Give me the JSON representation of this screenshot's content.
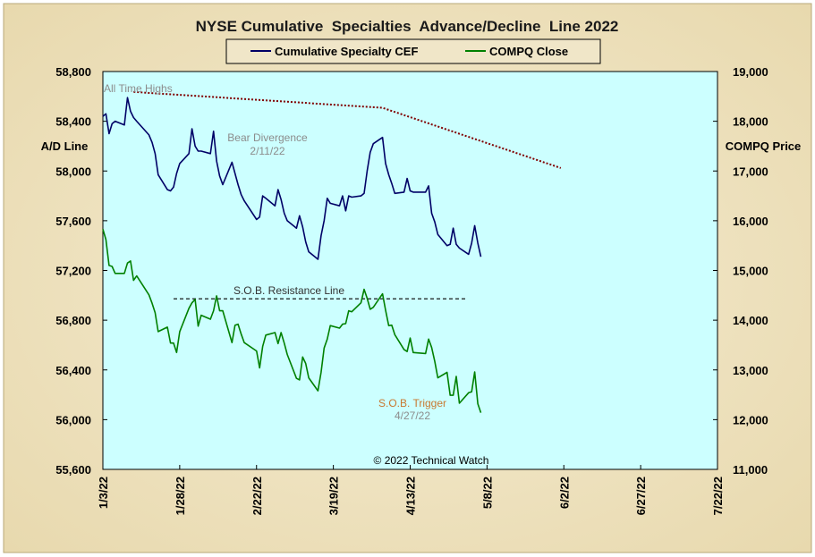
{
  "chart_data": {
    "type": "line",
    "title": "NYSE Cumulative  Specialties  Advance/Decline  Line 2022",
    "ylabel_left": "A/D Line",
    "ylabel_right": "COMPQ Price",
    "x_tick_labels": [
      "1/3/22",
      "1/28/22",
      "2/22/22",
      "3/19/22",
      "4/13/22",
      "5/8/22",
      "6/2/22",
      "6/27/22",
      "7/22/22"
    ],
    "x_ticks": [
      "2022-01-03",
      "2022-01-28",
      "2022-02-22",
      "2022-03-19",
      "2022-04-13",
      "2022-05-08",
      "2022-06-02",
      "2022-06-27",
      "2022-07-22"
    ],
    "xlim": [
      "2022-01-03",
      "2022-07-22"
    ],
    "ylim_left": [
      55600,
      58800
    ],
    "y_ticks_left": [
      "58,800",
      "58,400",
      "58,000",
      "57,600",
      "57,200",
      "56,800",
      "56,400",
      "56,000",
      "55,600"
    ],
    "ylim_right": [
      11000,
      19000
    ],
    "y_ticks_right": [
      "19,000",
      "18,000",
      "17,000",
      "16,000",
      "15,000",
      "14,000",
      "13,000",
      "12,000",
      "11,000"
    ],
    "legend": [
      "Cumulative Specialty CEF",
      "COMPQ Close"
    ],
    "legend_placement": "top-center",
    "colors": {
      "series1": "#000066",
      "series2": "#008000",
      "bear_line": "#800000",
      "plot_bg": "#ccffff",
      "panel_bg": "#f0e6c8"
    },
    "series": [
      {
        "name": "Cumulative Specialty CEF",
        "axis": "left",
        "x": [
          "2022-01-03",
          "2022-01-04",
          "2022-01-05",
          "2022-01-06",
          "2022-01-07",
          "2022-01-10",
          "2022-01-11",
          "2022-01-12",
          "2022-01-13",
          "2022-01-14",
          "2022-01-18",
          "2022-01-19",
          "2022-01-20",
          "2022-01-21",
          "2022-01-24",
          "2022-01-25",
          "2022-01-26",
          "2022-01-27",
          "2022-01-28",
          "2022-01-31",
          "2022-02-01",
          "2022-02-02",
          "2022-02-03",
          "2022-02-04",
          "2022-02-07",
          "2022-02-08",
          "2022-02-09",
          "2022-02-10",
          "2022-02-11",
          "2022-02-14",
          "2022-02-15",
          "2022-02-16",
          "2022-02-17",
          "2022-02-18",
          "2022-02-22",
          "2022-02-23",
          "2022-02-24",
          "2022-02-25",
          "2022-02-28",
          "2022-03-01",
          "2022-03-02",
          "2022-03-03",
          "2022-03-04",
          "2022-03-07",
          "2022-03-08",
          "2022-03-09",
          "2022-03-10",
          "2022-03-11",
          "2022-03-14",
          "2022-03-15",
          "2022-03-16",
          "2022-03-17",
          "2022-03-18",
          "2022-03-21",
          "2022-03-22",
          "2022-03-23",
          "2022-03-24",
          "2022-03-25",
          "2022-03-28",
          "2022-03-29",
          "2022-03-30",
          "2022-03-31",
          "2022-04-01",
          "2022-04-04",
          "2022-04-05",
          "2022-04-06",
          "2022-04-07",
          "2022-04-08",
          "2022-04-11",
          "2022-04-12",
          "2022-04-13",
          "2022-04-14",
          "2022-04-18",
          "2022-04-19",
          "2022-04-20",
          "2022-04-21",
          "2022-04-22",
          "2022-04-25",
          "2022-04-26",
          "2022-04-27",
          "2022-04-28",
          "2022-04-29",
          "2022-05-02",
          "2022-05-03",
          "2022-05-04",
          "2022-05-05",
          "2022-05-06"
        ],
        "values": [
          58440,
          58460,
          58300,
          58380,
          58400,
          58370,
          58590,
          58480,
          58430,
          58400,
          58290,
          58230,
          58140,
          57970,
          57850,
          57840,
          57870,
          57980,
          58060,
          58140,
          58340,
          58200,
          58160,
          58160,
          58140,
          58320,
          58080,
          57960,
          57890,
          58070,
          57980,
          57890,
          57810,
          57760,
          57610,
          57630,
          57800,
          57780,
          57720,
          57850,
          57770,
          57660,
          57600,
          57540,
          57640,
          57550,
          57430,
          57350,
          57290,
          57480,
          57600,
          57780,
          57740,
          57720,
          57800,
          57680,
          57800,
          57790,
          57800,
          57820,
          58000,
          58150,
          58220,
          58270,
          58060,
          57970,
          57900,
          57820,
          57830,
          57940,
          57840,
          57830,
          57830,
          57880,
          57660,
          57590,
          57490,
          57400,
          57410,
          57540,
          57410,
          57380,
          57330,
          57420,
          57560,
          57420,
          57310
        ]
      },
      {
        "name": "COMPQ Close",
        "axis": "right",
        "x": [
          "2022-01-03",
          "2022-01-04",
          "2022-01-05",
          "2022-01-06",
          "2022-01-07",
          "2022-01-10",
          "2022-01-11",
          "2022-01-12",
          "2022-01-13",
          "2022-01-14",
          "2022-01-18",
          "2022-01-19",
          "2022-01-20",
          "2022-01-21",
          "2022-01-24",
          "2022-01-25",
          "2022-01-26",
          "2022-01-27",
          "2022-01-28",
          "2022-01-31",
          "2022-02-01",
          "2022-02-02",
          "2022-02-03",
          "2022-02-04",
          "2022-02-07",
          "2022-02-08",
          "2022-02-09",
          "2022-02-10",
          "2022-02-11",
          "2022-02-14",
          "2022-02-15",
          "2022-02-16",
          "2022-02-17",
          "2022-02-18",
          "2022-02-22",
          "2022-02-23",
          "2022-02-24",
          "2022-02-25",
          "2022-02-28",
          "2022-03-01",
          "2022-03-02",
          "2022-03-03",
          "2022-03-04",
          "2022-03-07",
          "2022-03-08",
          "2022-03-09",
          "2022-03-10",
          "2022-03-11",
          "2022-03-14",
          "2022-03-15",
          "2022-03-16",
          "2022-03-17",
          "2022-03-18",
          "2022-03-21",
          "2022-03-22",
          "2022-03-23",
          "2022-03-24",
          "2022-03-25",
          "2022-03-28",
          "2022-03-29",
          "2022-03-30",
          "2022-03-31",
          "2022-04-01",
          "2022-04-04",
          "2022-04-05",
          "2022-04-06",
          "2022-04-07",
          "2022-04-08",
          "2022-04-11",
          "2022-04-12",
          "2022-04-13",
          "2022-04-14",
          "2022-04-18",
          "2022-04-19",
          "2022-04-20",
          "2022-04-21",
          "2022-04-22",
          "2022-04-25",
          "2022-04-26",
          "2022-04-27",
          "2022-04-28",
          "2022-04-29",
          "2022-05-02",
          "2022-05-03",
          "2022-05-04",
          "2022-05-05",
          "2022-05-06"
        ],
        "values": [
          15830,
          15620,
          15100,
          15080,
          14940,
          14940,
          15150,
          15190,
          14800,
          14890,
          14510,
          14340,
          14150,
          13770,
          13860,
          13540,
          13540,
          13350,
          13770,
          14240,
          14350,
          14420,
          13880,
          14100,
          14020,
          14190,
          14490,
          14190,
          14190,
          13550,
          13900,
          13920,
          13720,
          13550,
          13380,
          13040,
          13470,
          13700,
          13750,
          13530,
          13750,
          13540,
          13310,
          12830,
          12800,
          13260,
          13130,
          12840,
          12580,
          12950,
          13440,
          13620,
          13890,
          13840,
          13920,
          13930,
          14190,
          14170,
          14350,
          14620,
          14440,
          14220,
          14260,
          14530,
          14200,
          13890,
          13900,
          13710,
          13410,
          13370,
          13640,
          13350,
          13330,
          13620,
          13450,
          13170,
          12840,
          12950,
          12490,
          12490,
          12870,
          12330,
          12540,
          12560,
          12960,
          12320,
          12140
        ]
      }
    ],
    "bear_line": {
      "x": [
        "2022-01-13",
        "2022-04-04",
        "2022-06-01"
      ],
      "values": [
        18590,
        18270,
        17060
      ],
      "axis": "right"
    },
    "resistance_line": {
      "x": [
        "2022-01-26",
        "2022-05-01"
      ],
      "values": [
        14430,
        14430
      ],
      "axis": "right"
    },
    "annotations": {
      "all_time_highs": "All Time Highs",
      "bear_divergence": "Bear Divergence",
      "bear_divergence_date": "2/11/22",
      "sob_resistance": "S.O.B. Resistance Line",
      "sob_trigger": "S.O.B. Trigger",
      "sob_trigger_date": "4/27/22",
      "copyright": "© 2022 Technical Watch"
    }
  }
}
